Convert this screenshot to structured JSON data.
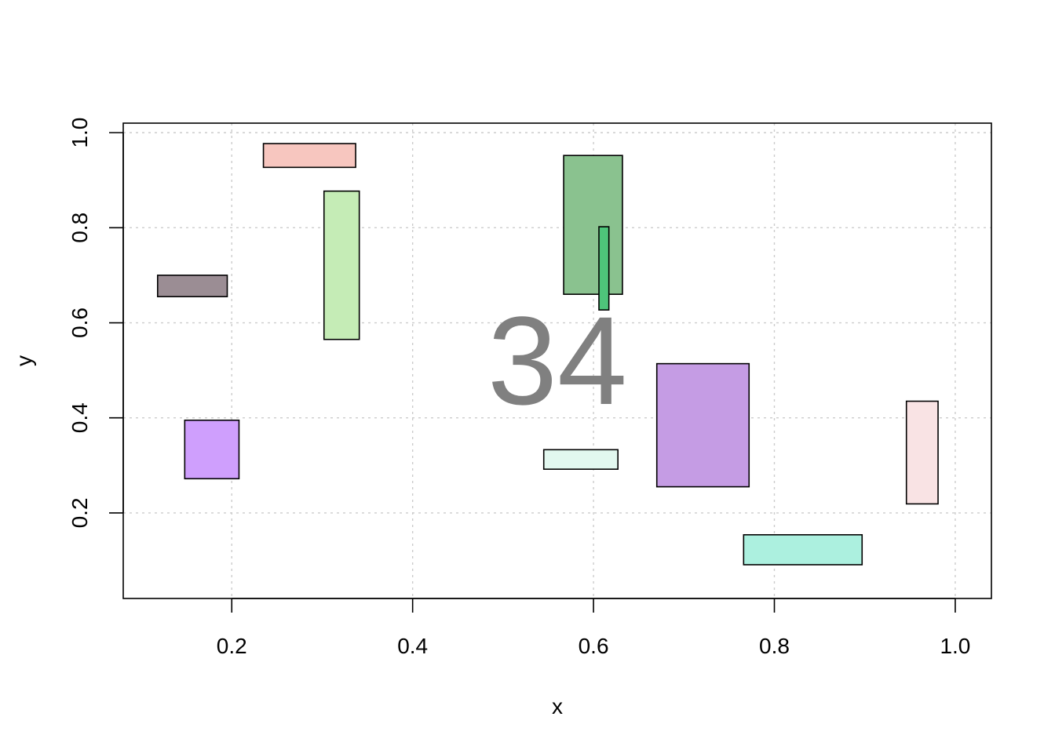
{
  "chart_data": {
    "type": "rectangles",
    "xlabel": "x",
    "ylabel": "y",
    "xlim": [
      0.08,
      1.04
    ],
    "ylim": [
      0.02,
      1.02
    ],
    "x_ticks": [
      0.2,
      0.4,
      0.6,
      0.8,
      1.0
    ],
    "y_ticks": [
      0.2,
      0.4,
      0.6,
      0.8,
      1.0
    ],
    "x_tick_labels": [
      "0.2",
      "0.4",
      "0.6",
      "0.8",
      "1.0"
    ],
    "y_tick_labels": [
      "0.2",
      "0.4",
      "0.6",
      "0.8",
      "1.0"
    ],
    "grid": true,
    "center_label": "34",
    "rectangles": [
      {
        "x0": 0.118,
        "x1": 0.195,
        "y0": 0.655,
        "y1": 0.7,
        "color": "#9b8d94"
      },
      {
        "x0": 0.235,
        "x1": 0.337,
        "y0": 0.927,
        "y1": 0.977,
        "color": "#f7c6bf"
      },
      {
        "x0": 0.302,
        "x1": 0.341,
        "y0": 0.565,
        "y1": 0.877,
        "color": "#c5ecb6"
      },
      {
        "x0": 0.148,
        "x1": 0.208,
        "y0": 0.272,
        "y1": 0.395,
        "color": "#cf9ffd"
      },
      {
        "x0": 0.567,
        "x1": 0.632,
        "y0": 0.66,
        "y1": 0.952,
        "color": "#8ac28f"
      },
      {
        "x0": 0.606,
        "x1": 0.617,
        "y0": 0.627,
        "y1": 0.802,
        "color": "#4ec47a"
      },
      {
        "x0": 0.545,
        "x1": 0.627,
        "y0": 0.292,
        "y1": 0.333,
        "color": "#e2f8ef"
      },
      {
        "x0": 0.67,
        "x1": 0.772,
        "y0": 0.255,
        "y1": 0.514,
        "color": "#c59ce4"
      },
      {
        "x0": 0.946,
        "x1": 0.981,
        "y0": 0.219,
        "y1": 0.435,
        "color": "#f9e3e4"
      },
      {
        "x0": 0.766,
        "x1": 0.897,
        "y0": 0.091,
        "y1": 0.154,
        "color": "#acf0df"
      }
    ]
  }
}
